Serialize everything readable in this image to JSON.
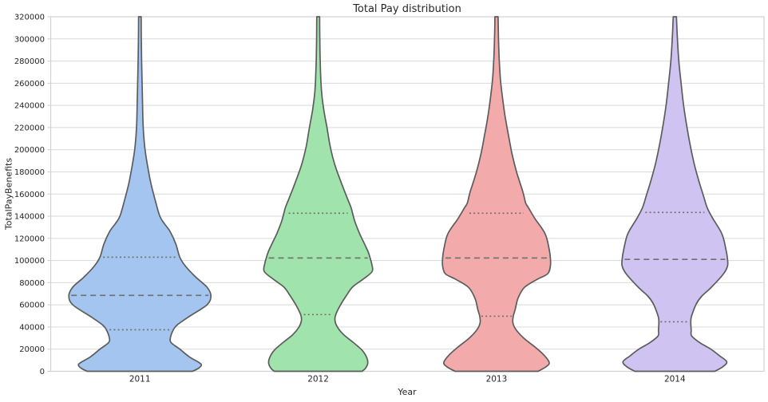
{
  "figure": {
    "title": "Total Pay distribution",
    "x_axis_label": "Year",
    "y_axis_label": "TotalPayBenefits"
  },
  "style": {
    "background": "#ffffff",
    "grid_color": "#d9d9d9",
    "frame_color": "#d2d2d2",
    "tick_mark_color": "#cccccc",
    "violin_edge_color": "#5c5c5c",
    "inner_line_color": "#6f6f6f",
    "text_color": "#262626"
  },
  "chart_data": {
    "type": "violin",
    "title": "Total Pay distribution",
    "xlabel": "Year",
    "ylabel": "TotalPayBenefits",
    "ylim": [
      0,
      320000
    ],
    "grid": true,
    "legend": false,
    "y_ticks": [
      0,
      20000,
      40000,
      60000,
      80000,
      100000,
      120000,
      140000,
      160000,
      180000,
      200000,
      220000,
      240000,
      260000,
      280000,
      300000,
      320000
    ],
    "categories": [
      "2011",
      "2012",
      "2013",
      "2014"
    ],
    "inner_style": {
      "median": "dashed",
      "quartiles": "dotted"
    },
    "series": [
      {
        "label": "2011",
        "fill_color": "#a3c5ef",
        "stats": {
          "q1": 37500,
          "median": 68500,
          "q3": 103000
        },
        "stat_halfwidths": {
          "q1": 40,
          "median": 88,
          "q3": 48
        },
        "profile_value_halfwidth": [
          [
            320000,
            1.6
          ],
          [
            300000,
            1.8
          ],
          [
            280000,
            2.2
          ],
          [
            260000,
            2.8
          ],
          [
            240000,
            3.4
          ],
          [
            220000,
            4.2
          ],
          [
            200000,
            6.5
          ],
          [
            184000,
            10
          ],
          [
            169000,
            14
          ],
          [
            155000,
            19
          ],
          [
            140000,
            25
          ],
          [
            133000,
            31
          ],
          [
            126000,
            38
          ],
          [
            115000,
            45
          ],
          [
            103000,
            50
          ],
          [
            95000,
            57
          ],
          [
            85000,
            70
          ],
          [
            76000,
            84
          ],
          [
            68000,
            89
          ],
          [
            60000,
            84
          ],
          [
            50000,
            63
          ],
          [
            42000,
            47
          ],
          [
            37500,
            42
          ],
          [
            31000,
            38.5
          ],
          [
            26000,
            39
          ],
          [
            20000,
            50
          ],
          [
            13000,
            62
          ],
          [
            8000,
            74
          ],
          [
            5500,
            77
          ],
          [
            2500,
            73
          ],
          [
            0,
            66
          ]
        ]
      },
      {
        "label": "2012",
        "fill_color": "#a0e3ac",
        "stats": {
          "q1": 51200,
          "median": 102300,
          "q3": 142700
        },
        "stat_halfwidths": {
          "q1": 20,
          "median": 64,
          "q3": 39
        },
        "profile_value_halfwidth": [
          [
            320000,
            1.8
          ],
          [
            300000,
            2.0
          ],
          [
            280000,
            2.5
          ],
          [
            260000,
            3.5
          ],
          [
            250000,
            4.5
          ],
          [
            236000,
            7
          ],
          [
            220000,
            11
          ],
          [
            203000,
            15
          ],
          [
            186000,
            21
          ],
          [
            170000,
            29
          ],
          [
            157000,
            36
          ],
          [
            148000,
            41
          ],
          [
            142700,
            43
          ],
          [
            135000,
            46
          ],
          [
            124000,
            52
          ],
          [
            115000,
            58
          ],
          [
            107000,
            63
          ],
          [
            102300,
            65
          ],
          [
            97000,
            67
          ],
          [
            90000,
            67.5
          ],
          [
            83000,
            56
          ],
          [
            76000,
            43
          ],
          [
            68000,
            35
          ],
          [
            60000,
            28
          ],
          [
            51200,
            22
          ],
          [
            46000,
            21
          ],
          [
            40000,
            24
          ],
          [
            33000,
            32
          ],
          [
            26000,
            44
          ],
          [
            19000,
            55
          ],
          [
            12000,
            61
          ],
          [
            7000,
            62
          ],
          [
            2500,
            59
          ],
          [
            0,
            55
          ]
        ]
      },
      {
        "label": "2013",
        "fill_color": "#f2aaab",
        "stats": {
          "q1": 49700,
          "median": 102300,
          "q3": 142700
        },
        "stat_halfwidths": {
          "q1": 21,
          "median": 66,
          "q3": 36
        },
        "profile_value_halfwidth": [
          [
            320000,
            2
          ],
          [
            300000,
            2.5
          ],
          [
            280000,
            3.5
          ],
          [
            263000,
            5
          ],
          [
            246000,
            7.7
          ],
          [
            229000,
            11
          ],
          [
            213000,
            15
          ],
          [
            196000,
            19.5
          ],
          [
            179000,
            25.5
          ],
          [
            162000,
            33
          ],
          [
            152000,
            36.5
          ],
          [
            147700,
            40
          ],
          [
            138000,
            48
          ],
          [
            124000,
            61
          ],
          [
            110000,
            66
          ],
          [
            102300,
            67.5
          ],
          [
            95000,
            67.5
          ],
          [
            88000,
            64
          ],
          [
            83000,
            51
          ],
          [
            75700,
            35
          ],
          [
            66000,
            27
          ],
          [
            56000,
            23.5
          ],
          [
            49700,
            21
          ],
          [
            44000,
            20.5
          ],
          [
            38000,
            24
          ],
          [
            30000,
            34
          ],
          [
            22000,
            48
          ],
          [
            15000,
            59
          ],
          [
            8000,
            66
          ],
          [
            4000,
            62
          ],
          [
            0,
            52
          ]
        ]
      },
      {
        "label": "2014",
        "fill_color": "#cfc3f1",
        "stats": {
          "q1": 44700,
          "median": 101000,
          "q3": 143400
        },
        "stat_halfwidths": {
          "q1": 20,
          "median": 65,
          "q3": 39
        },
        "profile_value_halfwidth": [
          [
            320000,
            2
          ],
          [
            299000,
            3.3
          ],
          [
            280000,
            5
          ],
          [
            261000,
            7.7
          ],
          [
            241000,
            10.8
          ],
          [
            222000,
            14.8
          ],
          [
            205000,
            19
          ],
          [
            188000,
            24
          ],
          [
            172000,
            30
          ],
          [
            158000,
            36
          ],
          [
            147700,
            40.5
          ],
          [
            138000,
            47.5
          ],
          [
            124000,
            59
          ],
          [
            110000,
            64
          ],
          [
            101000,
            66
          ],
          [
            95000,
            66
          ],
          [
            88000,
            61
          ],
          [
            76000,
            46
          ],
          [
            68000,
            34
          ],
          [
            61000,
            27
          ],
          [
            50000,
            21
          ],
          [
            44700,
            20
          ],
          [
            37000,
            20.5
          ],
          [
            32000,
            21
          ],
          [
            26000,
            31
          ],
          [
            20000,
            45
          ],
          [
            14000,
            56
          ],
          [
            8600,
            65
          ],
          [
            4000,
            60
          ],
          [
            0,
            50
          ]
        ]
      }
    ]
  }
}
